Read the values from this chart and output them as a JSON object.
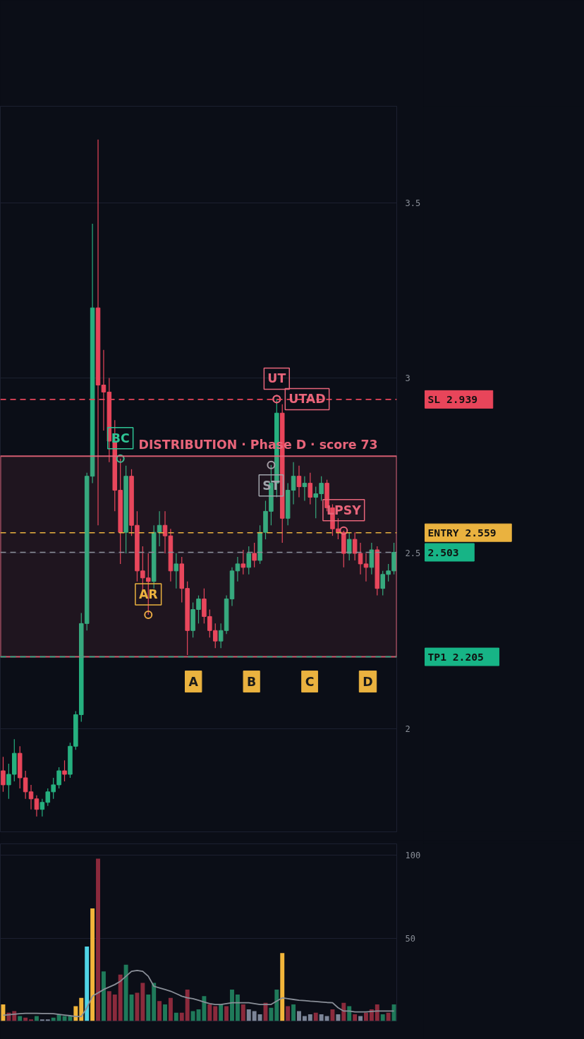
{
  "chart_data": [
    {
      "type": "candlestick",
      "categories": [
        null,
        null,
        null,
        null,
        null,
        null,
        null,
        null,
        null,
        null,
        null,
        null,
        null,
        null,
        null,
        null,
        null,
        null,
        null,
        null,
        null,
        null,
        null,
        null,
        null,
        null,
        null,
        null,
        null,
        null,
        null,
        null,
        null,
        null,
        null,
        null,
        null,
        null,
        null,
        null,
        null,
        null,
        null,
        null,
        null,
        null,
        null,
        null,
        null,
        null,
        null,
        null,
        null,
        null,
        null,
        null,
        null,
        null,
        null,
        null,
        null,
        null,
        null,
        null,
        null,
        null,
        null,
        null,
        null,
        null,
        null
      ],
      "ohlc": [
        [
          1.88,
          1.92,
          1.82,
          1.84
        ],
        [
          1.84,
          1.9,
          1.8,
          1.87
        ],
        [
          1.87,
          1.97,
          1.85,
          1.93
        ],
        [
          1.93,
          1.95,
          1.83,
          1.86
        ],
        [
          1.86,
          1.88,
          1.8,
          1.82
        ],
        [
          1.82,
          1.84,
          1.77,
          1.8
        ],
        [
          1.8,
          1.81,
          1.75,
          1.77
        ],
        [
          1.77,
          1.8,
          1.75,
          1.79
        ],
        [
          1.79,
          1.83,
          1.78,
          1.82
        ],
        [
          1.82,
          1.86,
          1.8,
          1.84
        ],
        [
          1.84,
          1.89,
          1.83,
          1.88
        ],
        [
          1.88,
          1.91,
          1.85,
          1.87
        ],
        [
          1.87,
          1.96,
          1.86,
          1.95
        ],
        [
          1.95,
          2.05,
          1.94,
          2.04
        ],
        [
          2.04,
          2.33,
          2.02,
          2.3
        ],
        [
          2.3,
          2.73,
          2.28,
          2.72
        ],
        [
          2.72,
          3.44,
          2.7,
          3.2
        ],
        [
          3.2,
          3.68,
          2.58,
          2.98
        ],
        [
          2.98,
          3.08,
          2.85,
          2.96
        ],
        [
          2.96,
          3.0,
          2.76,
          2.82
        ],
        [
          2.82,
          2.88,
          2.62,
          2.68
        ],
        [
          2.68,
          2.77,
          2.47,
          2.56
        ],
        [
          2.56,
          2.75,
          2.5,
          2.72
        ],
        [
          2.72,
          2.74,
          2.55,
          2.58
        ],
        [
          2.58,
          2.62,
          2.42,
          2.45
        ],
        [
          2.45,
          2.52,
          2.38,
          2.43
        ],
        [
          2.43,
          2.5,
          2.325,
          2.42
        ],
        [
          2.42,
          2.58,
          2.4,
          2.56
        ],
        [
          2.56,
          2.62,
          2.52,
          2.58
        ],
        [
          2.58,
          2.62,
          2.5,
          2.55
        ],
        [
          2.55,
          2.57,
          2.42,
          2.45
        ],
        [
          2.45,
          2.5,
          2.4,
          2.47
        ],
        [
          2.47,
          2.49,
          2.36,
          2.4
        ],
        [
          2.4,
          2.42,
          2.21,
          2.28
        ],
        [
          2.28,
          2.36,
          2.26,
          2.34
        ],
        [
          2.34,
          2.38,
          2.3,
          2.37
        ],
        [
          2.37,
          2.4,
          2.3,
          2.32
        ],
        [
          2.32,
          2.34,
          2.26,
          2.28
        ],
        [
          2.28,
          2.3,
          2.23,
          2.25
        ],
        [
          2.25,
          2.3,
          2.23,
          2.28
        ],
        [
          2.28,
          2.38,
          2.27,
          2.37
        ],
        [
          2.37,
          2.46,
          2.35,
          2.45
        ],
        [
          2.45,
          2.49,
          2.42,
          2.47
        ],
        [
          2.47,
          2.51,
          2.44,
          2.46
        ],
        [
          2.46,
          2.52,
          2.44,
          2.5
        ],
        [
          2.5,
          2.53,
          2.46,
          2.48
        ],
        [
          2.48,
          2.58,
          2.47,
          2.56
        ],
        [
          2.56,
          2.65,
          2.54,
          2.62
        ],
        [
          2.62,
          2.752,
          2.58,
          2.7
        ],
        [
          2.7,
          2.94,
          2.66,
          2.9
        ],
        [
          2.9,
          2.925,
          2.53,
          2.6
        ],
        [
          2.6,
          2.7,
          2.58,
          2.68
        ],
        [
          2.68,
          2.76,
          2.64,
          2.72
        ],
        [
          2.72,
          2.75,
          2.66,
          2.69
        ],
        [
          2.69,
          2.72,
          2.65,
          2.7
        ],
        [
          2.7,
          2.73,
          2.64,
          2.66
        ],
        [
          2.66,
          2.69,
          2.6,
          2.67
        ],
        [
          2.67,
          2.72,
          2.65,
          2.7
        ],
        [
          2.7,
          2.71,
          2.62,
          2.63
        ],
        [
          2.63,
          2.64,
          2.55,
          2.57
        ],
        [
          2.57,
          2.6,
          2.54,
          2.56
        ],
        [
          2.56,
          2.565,
          2.46,
          2.5
        ],
        [
          2.5,
          2.56,
          2.48,
          2.54
        ],
        [
          2.54,
          2.56,
          2.48,
          2.5
        ],
        [
          2.5,
          2.53,
          2.44,
          2.47
        ],
        [
          2.47,
          2.5,
          2.42,
          2.46
        ],
        [
          2.46,
          2.53,
          2.44,
          2.51
        ],
        [
          2.51,
          2.52,
          2.38,
          2.4
        ],
        [
          2.4,
          2.45,
          2.38,
          2.44
        ],
        [
          2.44,
          2.47,
          2.42,
          2.45
        ],
        [
          2.45,
          2.53,
          2.44,
          2.503
        ]
      ],
      "colors": [
        "#e8455a",
        "#26b07f",
        "#26b07f",
        "#e8455a",
        "#e8455a",
        "#e8455a",
        "#e8455a",
        "#26b07f",
        "#26b07f",
        "#26b07f",
        "#26b07f",
        "#e8455a",
        "#26b07f",
        "#26b07f",
        "#26b07f",
        "#26b07f",
        "#26b07f",
        "#e8455a",
        "#e8455a",
        "#e8455a",
        "#e8455a",
        "#e8455a",
        "#26b07f",
        "#e8455a",
        "#e8455a",
        "#e8455a",
        "#e8455a",
        "#26b07f",
        "#26b07f",
        "#e8455a",
        "#e8455a",
        "#26b07f",
        "#e8455a",
        "#e8455a",
        "#26b07f",
        "#26b07f",
        "#e8455a",
        "#e8455a",
        "#e8455a",
        "#26b07f",
        "#26b07f",
        "#26b07f",
        "#26b07f",
        "#e8455a",
        "#26b07f",
        "#e8455a",
        "#26b07f",
        "#26b07f",
        "#26b07f",
        "#26b07f",
        "#e8455a",
        "#26b07f",
        "#26b07f",
        "#e8455a",
        "#26b07f",
        "#e8455a",
        "#26b07f",
        "#26b07f",
        "#e8455a",
        "#e8455a",
        "#e8455a",
        "#e8455a",
        "#26b07f",
        "#e8455a",
        "#e8455a",
        "#e8455a",
        "#26b07f",
        "#e8455a",
        "#26b07f",
        "#26b07f",
        "#26b07f"
      ],
      "ylim": [
        1.706,
        3.775
      ],
      "yticks": [
        2,
        2.5,
        3,
        3.5
      ],
      "tick_labels": "y",
      "grid": true,
      "ref_lines": [
        {
          "axis": "y",
          "value": 2.939,
          "label": "SL 2.939",
          "color": "#e8455a",
          "line_style": "dashed"
        },
        {
          "axis": "y",
          "value": 2.559,
          "label": "ENTRY 2.559",
          "color": "#eab23f",
          "line_style": "dashed"
        },
        {
          "axis": "y",
          "value": 2.503,
          "label": "2.503",
          "color": "#8a8f98",
          "line_style": "dashed"
        },
        {
          "axis": "y",
          "value": 2.205,
          "label": "TP1 2.205",
          "color": "#17b486",
          "line_style": "dashed"
        }
      ],
      "bands": [
        {
          "axis": "y",
          "from": 2.205,
          "to": 2.777,
          "label": "DISTRIBUTION · Phase D · score 73",
          "color": "#e8657a"
        }
      ],
      "annotations": [
        {
          "text": "BC",
          "y": 2.77
        },
        {
          "text": "AR",
          "y": 2.325
        },
        {
          "text": "ST",
          "y": 2.752
        },
        {
          "text": "UT",
          "y": 2.94
        },
        {
          "text": "UTAD",
          "y": 2.94
        },
        {
          "text": "LPSY",
          "y": 2.565
        },
        "A",
        "B",
        "C",
        "D"
      ]
    },
    {
      "type": "bar",
      "categories": [
        null,
        null,
        null,
        null,
        null,
        null,
        null,
        null,
        null,
        null,
        null,
        null,
        null,
        null,
        null,
        null,
        null,
        null,
        null,
        null,
        null,
        null,
        null,
        null,
        null,
        null,
        null,
        null,
        null,
        null,
        null,
        null,
        null,
        null,
        null,
        null,
        null,
        null,
        null,
        null,
        null,
        null,
        null,
        null,
        null,
        null,
        null,
        null,
        null,
        null,
        null,
        null,
        null,
        null,
        null,
        null,
        null,
        null,
        null,
        null,
        null,
        null,
        null,
        null,
        null,
        null,
        null,
        null,
        null,
        null,
        null
      ],
      "ylim": [
        0,
        107
      ],
      "yticks": [
        50,
        100
      ],
      "tick_labels": "y",
      "grid": "y",
      "series": [
        {
          "type": "bar",
          "values": [
            10,
            5,
            6,
            3,
            2,
            1,
            3,
            1,
            1,
            2,
            4,
            3,
            3,
            9,
            14,
            45,
            68,
            98,
            30,
            18,
            16,
            28,
            34,
            16,
            17,
            23,
            16,
            23,
            12,
            10,
            14,
            5,
            5,
            19,
            6,
            7,
            15,
            10,
            9,
            10,
            9,
            19,
            16,
            10,
            7,
            6,
            4,
            11,
            8,
            19,
            41,
            9,
            10,
            6,
            3,
            4,
            5,
            4,
            3,
            7,
            4,
            11,
            9,
            4,
            3,
            5,
            7,
            10,
            4,
            5,
            10
          ],
          "colors": [
            "#f2b53a",
            "#8b2a3c",
            "#8b2a3c",
            "#1f7a5a",
            "#8b2a3c",
            "#8b2a3c",
            "#1f7a5a",
            "#7c8597",
            "#7c8597",
            "#1f7a5a",
            "#1f7a5a",
            "#1f7a5a",
            "#1f7a5a",
            "#f2b53a",
            "#f2b53a",
            "#4fd3e6",
            "#f2b53a",
            "#8b2a3c",
            "#1f7a5a",
            "#8b2a3c",
            "#8b2a3c",
            "#8b2a3c",
            "#1f7a5a",
            "#1f7a5a",
            "#8b2a3c",
            "#8b2a3c",
            "#1f7a5a",
            "#1f7a5a",
            "#8b2a3c",
            "#1f7a5a",
            "#8b2a3c",
            "#1f7a5a",
            "#8b2a3c",
            "#8b2a3c",
            "#1f7a5a",
            "#1f7a5a",
            "#1f7a5a",
            "#8b2a3c",
            "#8b2a3c",
            "#1f7a5a",
            "#8b2a3c",
            "#1f7a5a",
            "#1f7a5a",
            "#8b2a3c",
            "#7c8597",
            "#7c8597",
            "#7c8597",
            "#8b2a3c",
            "#1f7a5a",
            "#1f7a5a",
            "#f2b53a",
            "#8b2a3c",
            "#1f7a5a",
            "#7c8597",
            "#7c8597",
            "#7c8597",
            "#8b2a3c",
            "#7c8597",
            "#7c8597",
            "#8b2a3c",
            "#7c8597",
            "#8b2a3c",
            "#1f7a5a",
            "#8b2a3c",
            "#7c8597",
            "#8b2a3c",
            "#8b2a3c",
            "#8b2a3c",
            "#1f7a5a",
            "#8b2a3c",
            "#1f7a5a"
          ]
        },
        {
          "type": "line",
          "color": "#8a8f98",
          "values": [
            3.5,
            3.8,
            4.1,
            4.4,
            4.6,
            4.6,
            4.6,
            4.5,
            4.5,
            4.4,
            4,
            3.6,
            3.2,
            2.7,
            2.7,
            8,
            15,
            17,
            19,
            20.5,
            22,
            24,
            27,
            30,
            30.5,
            30,
            27,
            21,
            20,
            19,
            18,
            16.5,
            15,
            14,
            13.5,
            12.5,
            11.5,
            10.5,
            10,
            10,
            10.5,
            11,
            11,
            11,
            11,
            10.5,
            10,
            10,
            10,
            12,
            14,
            13.5,
            13,
            12.5,
            12.3,
            12,
            11.8,
            11.5,
            11.2,
            11,
            8,
            6,
            6,
            5.5,
            5.5,
            5.5,
            5.8,
            6,
            6,
            6,
            6
          ]
        }
      ]
    }
  ]
}
